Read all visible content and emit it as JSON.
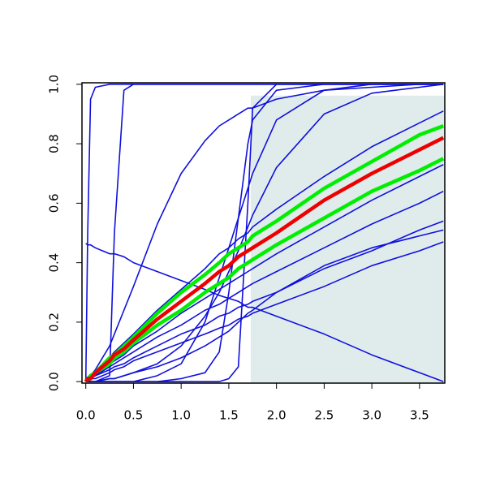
{
  "chart_data": {
    "type": "line",
    "x": [
      0,
      0.02,
      0.05,
      0.1,
      0.25,
      0.3,
      0.4,
      0.5,
      0.75,
      1,
      1.25,
      1.4,
      1.5,
      1.6,
      1.7,
      1.75,
      2,
      2.5,
      3,
      3.5,
      3.75
    ],
    "xlim": [
      -0.04,
      3.765
    ],
    "ylim": [
      -0.005,
      1.005
    ],
    "xticks": [
      {
        "value": 0,
        "label": "0.0"
      },
      0.5,
      {
        "value": 1,
        "label": "1.0"
      },
      1.5,
      {
        "value": 2,
        "label": "2.0"
      },
      2.5,
      {
        "value": 3,
        "label": "3.0"
      },
      3.5
    ],
    "yticks": [
      {
        "value": 0,
        "label": "0.0"
      },
      0.2,
      0.4,
      0.6,
      0.8,
      {
        "value": 1,
        "label": "1.0"
      }
    ],
    "shade": {
      "x": [
        1.73,
        3.765
      ],
      "y": [
        -0.005,
        0.962
      ],
      "color": "#e0ecec"
    },
    "series": [
      {
        "color": "#1010dd",
        "linewidth": 1.6,
        "values": [
          0,
          0.5,
          0.95,
          0.99,
          1,
          1,
          1,
          1,
          1,
          1,
          1,
          1,
          1,
          1,
          1,
          1,
          1,
          1,
          1,
          1,
          1
        ]
      },
      {
        "color": "#1010dd",
        "linewidth": 1.6,
        "values": [
          0,
          0,
          0,
          0,
          0.02,
          0.5,
          0.98,
          1,
          1,
          1,
          1,
          1,
          1,
          1,
          1,
          1,
          1,
          1,
          1,
          1,
          1
        ]
      },
      {
        "color": "#1010dd",
        "linewidth": 1.6,
        "values": [
          0,
          0.01,
          0.02,
          0.04,
          0.12,
          0.16,
          0.24,
          0.32,
          0.53,
          0.7,
          0.81,
          0.86,
          0.88,
          0.9,
          0.92,
          0.92,
          0.95,
          0.98,
          0.99,
          1,
          1
        ]
      },
      {
        "color": "#1010dd",
        "linewidth": 1.6,
        "values": [
          0,
          0,
          0,
          0,
          0,
          0,
          0,
          0,
          0,
          0.01,
          0.03,
          0.1,
          0.3,
          0.55,
          0.8,
          0.88,
          0.98,
          1,
          1,
          1,
          1
        ]
      },
      {
        "color": "#1010dd",
        "linewidth": 1.6,
        "values": [
          0,
          0,
          0,
          0,
          0,
          0,
          0,
          0,
          0,
          0,
          0,
          0,
          0.01,
          0.05,
          0.6,
          0.92,
          1,
          1,
          1,
          1,
          1
        ]
      },
      {
        "color": "#1010dd",
        "linewidth": 1.6,
        "values": [
          0,
          0,
          0,
          0,
          0,
          0,
          0,
          0,
          0.02,
          0.06,
          0.2,
          0.35,
          0.45,
          0.55,
          0.65,
          0.7,
          0.88,
          0.98,
          1,
          1,
          1
        ]
      },
      {
        "color": "#1010dd",
        "linewidth": 1.6,
        "values": [
          0,
          0,
          0,
          0,
          0.01,
          0.01,
          0.02,
          0.03,
          0.06,
          0.12,
          0.22,
          0.3,
          0.37,
          0.44,
          0.52,
          0.56,
          0.72,
          0.9,
          0.97,
          0.99,
          1
        ]
      },
      {
        "color": "#1010dd",
        "linewidth": 1.6,
        "values": [
          0.465,
          0.46,
          0.46,
          0.45,
          0.43,
          0.43,
          0.42,
          0.4,
          0.37,
          0.34,
          0.31,
          0.29,
          0.28,
          0.27,
          0.25,
          0.25,
          0.22,
          0.16,
          0.09,
          0.03,
          0
        ]
      },
      {
        "color": "#1010dd",
        "linewidth": 1.6,
        "values": [
          0,
          0.01,
          0.02,
          0.03,
          0.08,
          0.1,
          0.13,
          0.16,
          0.24,
          0.31,
          0.38,
          0.43,
          0.45,
          0.48,
          0.5,
          0.52,
          0.58,
          0.69,
          0.79,
          0.87,
          0.91
        ]
      },
      {
        "color": "#1010dd",
        "linewidth": 1.6,
        "values": [
          0,
          0,
          0.01,
          0.02,
          0.06,
          0.07,
          0.09,
          0.12,
          0.17,
          0.23,
          0.28,
          0.31,
          0.33,
          0.35,
          0.37,
          0.38,
          0.43,
          0.52,
          0.61,
          0.69,
          0.73
        ]
      },
      {
        "color": "#1010dd",
        "linewidth": 1.6,
        "values": [
          0,
          0,
          0.01,
          0.02,
          0.05,
          0.06,
          0.08,
          0.1,
          0.15,
          0.19,
          0.24,
          0.26,
          0.28,
          0.3,
          0.32,
          0.33,
          0.37,
          0.45,
          0.53,
          0.6,
          0.64
        ]
      },
      {
        "color": "#1010dd",
        "linewidth": 1.6,
        "values": [
          0,
          0,
          0.01,
          0.02,
          0.04,
          0.05,
          0.06,
          0.08,
          0.12,
          0.16,
          0.19,
          0.22,
          0.23,
          0.25,
          0.26,
          0.27,
          0.3,
          0.38,
          0.44,
          0.51,
          0.54
        ]
      },
      {
        "color": "#1010dd",
        "linewidth": 1.6,
        "values": [
          0,
          0,
          0.01,
          0.01,
          0.03,
          0.04,
          0.05,
          0.07,
          0.1,
          0.13,
          0.16,
          0.18,
          0.19,
          0.21,
          0.22,
          0.23,
          0.26,
          0.32,
          0.39,
          0.44,
          0.47
        ]
      },
      {
        "color": "#1010dd",
        "linewidth": 1.6,
        "values": [
          0,
          0,
          0,
          0,
          0.01,
          0.01,
          0.02,
          0.03,
          0.05,
          0.08,
          0.12,
          0.15,
          0.17,
          0.2,
          0.23,
          0.24,
          0.3,
          0.39,
          0.45,
          0.49,
          0.51
        ]
      },
      {
        "color": "#00ee00",
        "linewidth": 4.5,
        "values": [
          0,
          0.01,
          0.02,
          0.03,
          0.08,
          0.09,
          0.12,
          0.15,
          0.23,
          0.3,
          0.36,
          0.4,
          0.43,
          0.45,
          0.47,
          0.49,
          0.54,
          0.65,
          0.74,
          0.83,
          0.86
        ]
      },
      {
        "color": "#00ee00",
        "linewidth": 4.5,
        "values": [
          0,
          0.01,
          0.01,
          0.03,
          0.06,
          0.08,
          0.1,
          0.13,
          0.19,
          0.24,
          0.3,
          0.33,
          0.35,
          0.38,
          0.4,
          0.41,
          0.46,
          0.55,
          0.64,
          0.71,
          0.75
        ]
      },
      {
        "color": "#ee0000",
        "linewidth": 4.5,
        "values": [
          0,
          0.01,
          0.01,
          0.03,
          0.07,
          0.09,
          0.11,
          0.14,
          0.21,
          0.27,
          0.33,
          0.37,
          0.39,
          0.42,
          0.44,
          0.45,
          0.5,
          0.61,
          0.7,
          0.78,
          0.82
        ]
      }
    ]
  }
}
